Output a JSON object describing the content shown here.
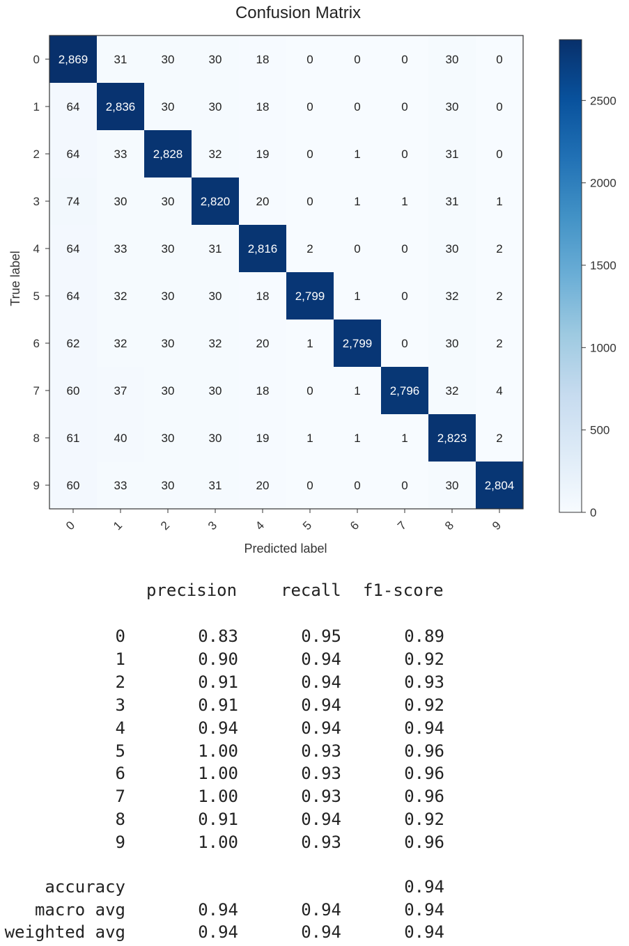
{
  "chart_data": {
    "type": "heatmap",
    "title": "Confusion Matrix",
    "xlabel": "Predicted label",
    "ylabel": "True label",
    "x_ticks": [
      "0",
      "1",
      "2",
      "3",
      "4",
      "5",
      "6",
      "7",
      "8",
      "9"
    ],
    "y_ticks": [
      "0",
      "1",
      "2",
      "3",
      "4",
      "5",
      "6",
      "7",
      "8",
      "9"
    ],
    "matrix": [
      [
        2869,
        31,
        30,
        30,
        18,
        0,
        0,
        0,
        30,
        0
      ],
      [
        64,
        2836,
        30,
        30,
        18,
        0,
        0,
        0,
        30,
        0
      ],
      [
        64,
        33,
        2828,
        32,
        19,
        0,
        1,
        0,
        31,
        0
      ],
      [
        74,
        30,
        30,
        2820,
        20,
        0,
        1,
        1,
        31,
        1
      ],
      [
        64,
        33,
        30,
        31,
        2816,
        2,
        0,
        0,
        30,
        2
      ],
      [
        64,
        32,
        30,
        30,
        18,
        2799,
        1,
        0,
        32,
        2
      ],
      [
        62,
        32,
        30,
        32,
        20,
        1,
        2799,
        0,
        30,
        2
      ],
      [
        60,
        37,
        30,
        30,
        18,
        0,
        1,
        2796,
        32,
        4
      ],
      [
        61,
        40,
        30,
        30,
        19,
        1,
        1,
        1,
        2823,
        2
      ],
      [
        60,
        33,
        30,
        31,
        20,
        0,
        0,
        0,
        30,
        2804
      ]
    ],
    "cell_labels": [
      [
        "2,869",
        "31",
        "30",
        "30",
        "18",
        "0",
        "0",
        "0",
        "30",
        "0"
      ],
      [
        "64",
        "2,836",
        "30",
        "30",
        "18",
        "0",
        "0",
        "0",
        "30",
        "0"
      ],
      [
        "64",
        "33",
        "2,828",
        "32",
        "19",
        "0",
        "1",
        "0",
        "31",
        "0"
      ],
      [
        "74",
        "30",
        "30",
        "2,820",
        "20",
        "0",
        "1",
        "1",
        "31",
        "1"
      ],
      [
        "64",
        "33",
        "30",
        "31",
        "2,816",
        "2",
        "0",
        "0",
        "30",
        "2"
      ],
      [
        "64",
        "32",
        "30",
        "30",
        "18",
        "2,799",
        "1",
        "0",
        "32",
        "2"
      ],
      [
        "62",
        "32",
        "30",
        "32",
        "20",
        "1",
        "2,799",
        "0",
        "30",
        "2"
      ],
      [
        "60",
        "37",
        "30",
        "30",
        "18",
        "0",
        "1",
        "2,796",
        "32",
        "4"
      ],
      [
        "61",
        "40",
        "30",
        "30",
        "19",
        "1",
        "1",
        "1",
        "2,823",
        "2"
      ],
      [
        "60",
        "33",
        "30",
        "31",
        "20",
        "0",
        "0",
        "0",
        "30",
        "2,804"
      ]
    ],
    "colorbar": {
      "range": [
        0,
        2869
      ],
      "ticks": [
        0,
        500,
        1000,
        1500,
        2000,
        2500
      ],
      "colormap": "Blues",
      "color_low": "#f7fbff",
      "color_high": "#08306b"
    }
  },
  "report": {
    "headers": {
      "precision": "precision",
      "recall": "recall",
      "f1": "f1-score"
    },
    "rows": [
      {
        "label": "0",
        "precision": "0.83",
        "recall": "0.95",
        "f1": "0.89"
      },
      {
        "label": "1",
        "precision": "0.90",
        "recall": "0.94",
        "f1": "0.92"
      },
      {
        "label": "2",
        "precision": "0.91",
        "recall": "0.94",
        "f1": "0.93"
      },
      {
        "label": "3",
        "precision": "0.91",
        "recall": "0.94",
        "f1": "0.92"
      },
      {
        "label": "4",
        "precision": "0.94",
        "recall": "0.94",
        "f1": "0.94"
      },
      {
        "label": "5",
        "precision": "1.00",
        "recall": "0.93",
        "f1": "0.96"
      },
      {
        "label": "6",
        "precision": "1.00",
        "recall": "0.93",
        "f1": "0.96"
      },
      {
        "label": "7",
        "precision": "1.00",
        "recall": "0.93",
        "f1": "0.96"
      },
      {
        "label": "8",
        "precision": "0.91",
        "recall": "0.94",
        "f1": "0.92"
      },
      {
        "label": "9",
        "precision": "1.00",
        "recall": "0.93",
        "f1": "0.96"
      }
    ],
    "summary": [
      {
        "label": "accuracy",
        "precision": "",
        "recall": "",
        "f1": "0.94"
      },
      {
        "label": "macro avg",
        "precision": "0.94",
        "recall": "0.94",
        "f1": "0.94"
      },
      {
        "label": "weighted avg",
        "precision": "0.94",
        "recall": "0.94",
        "f1": "0.94"
      }
    ]
  }
}
